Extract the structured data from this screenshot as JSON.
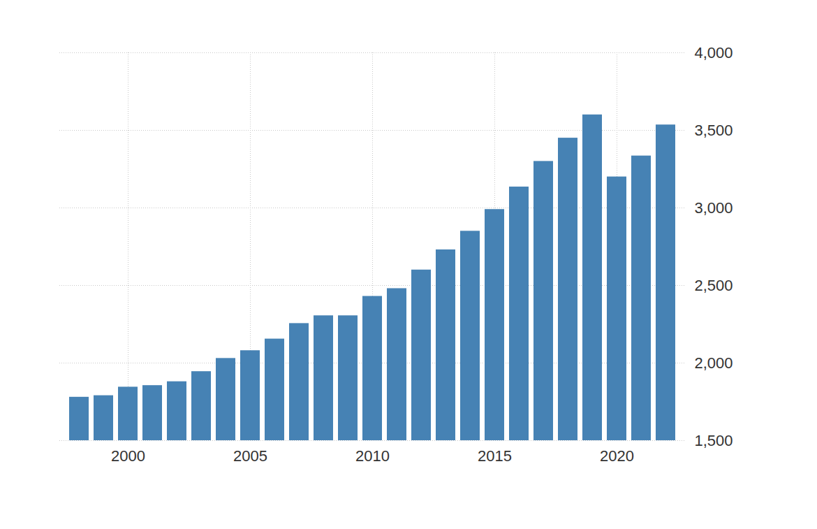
{
  "chart_data": {
    "type": "bar",
    "categories": [
      null,
      null,
      "2000",
      null,
      null,
      null,
      null,
      "2005",
      null,
      null,
      null,
      null,
      "2010",
      null,
      null,
      null,
      null,
      "2015",
      null,
      null,
      null,
      null,
      "2020",
      null,
      null
    ],
    "values": [
      1780,
      1790,
      1845,
      1855,
      1880,
      1945,
      2030,
      2080,
      2155,
      2255,
      2305,
      2305,
      2430,
      2480,
      2600,
      2730,
      2850,
      2990,
      3135,
      3300,
      3450,
      3600,
      3200,
      3335,
      3535
    ],
    "color": "#4682b4",
    "ylim": [
      1500,
      4000
    ],
    "yticks": [
      1500,
      2000,
      2500,
      3000,
      3500,
      4000
    ],
    "grid": true
  }
}
